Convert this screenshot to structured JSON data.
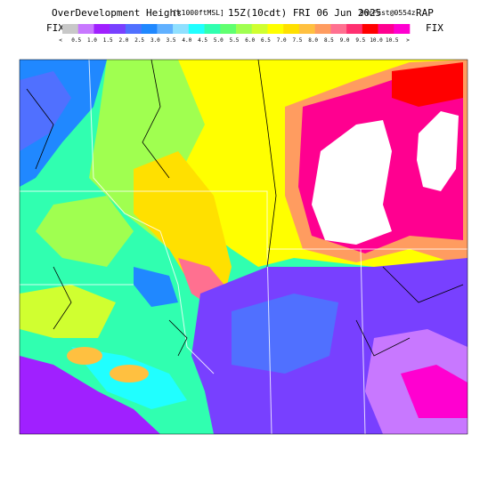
{
  "header": {
    "title": "OverDevelopment Height",
    "units": "[x1000ftMSL]",
    "time": "15Z(10cdt) FRI 06 Jun 2025",
    "forecast": "9hrFcst@0554z",
    "model": "RAP"
  },
  "colorbar": {
    "left_label": "FIX",
    "right_label": "FIX",
    "ticks": [
      "<",
      "0.5",
      "1.0",
      "1.5",
      "2.0",
      "2.5",
      "3.0",
      "3.5",
      "4.0",
      "4.5",
      "5.0",
      "5.5",
      "6.0",
      "6.5",
      "7.0",
      "7.5",
      "8.0",
      "8.5",
      "9.0",
      "9.5",
      "10.0",
      "10.5",
      ">"
    ],
    "colors": [
      "#c8c8c8",
      "#c878ff",
      "#a020ff",
      "#7840ff",
      "#5070ff",
      "#2088ff",
      "#60b0ff",
      "#90e0ff",
      "#20ffff",
      "#30ffb0",
      "#60ff70",
      "#a0ff50",
      "#d0ff30",
      "#ffff00",
      "#ffe000",
      "#ffc040",
      "#ff9c60",
      "#ff7090",
      "#ff3070",
      "#ff0000",
      "#ff0090",
      "#ff00d0"
    ]
  }
}
